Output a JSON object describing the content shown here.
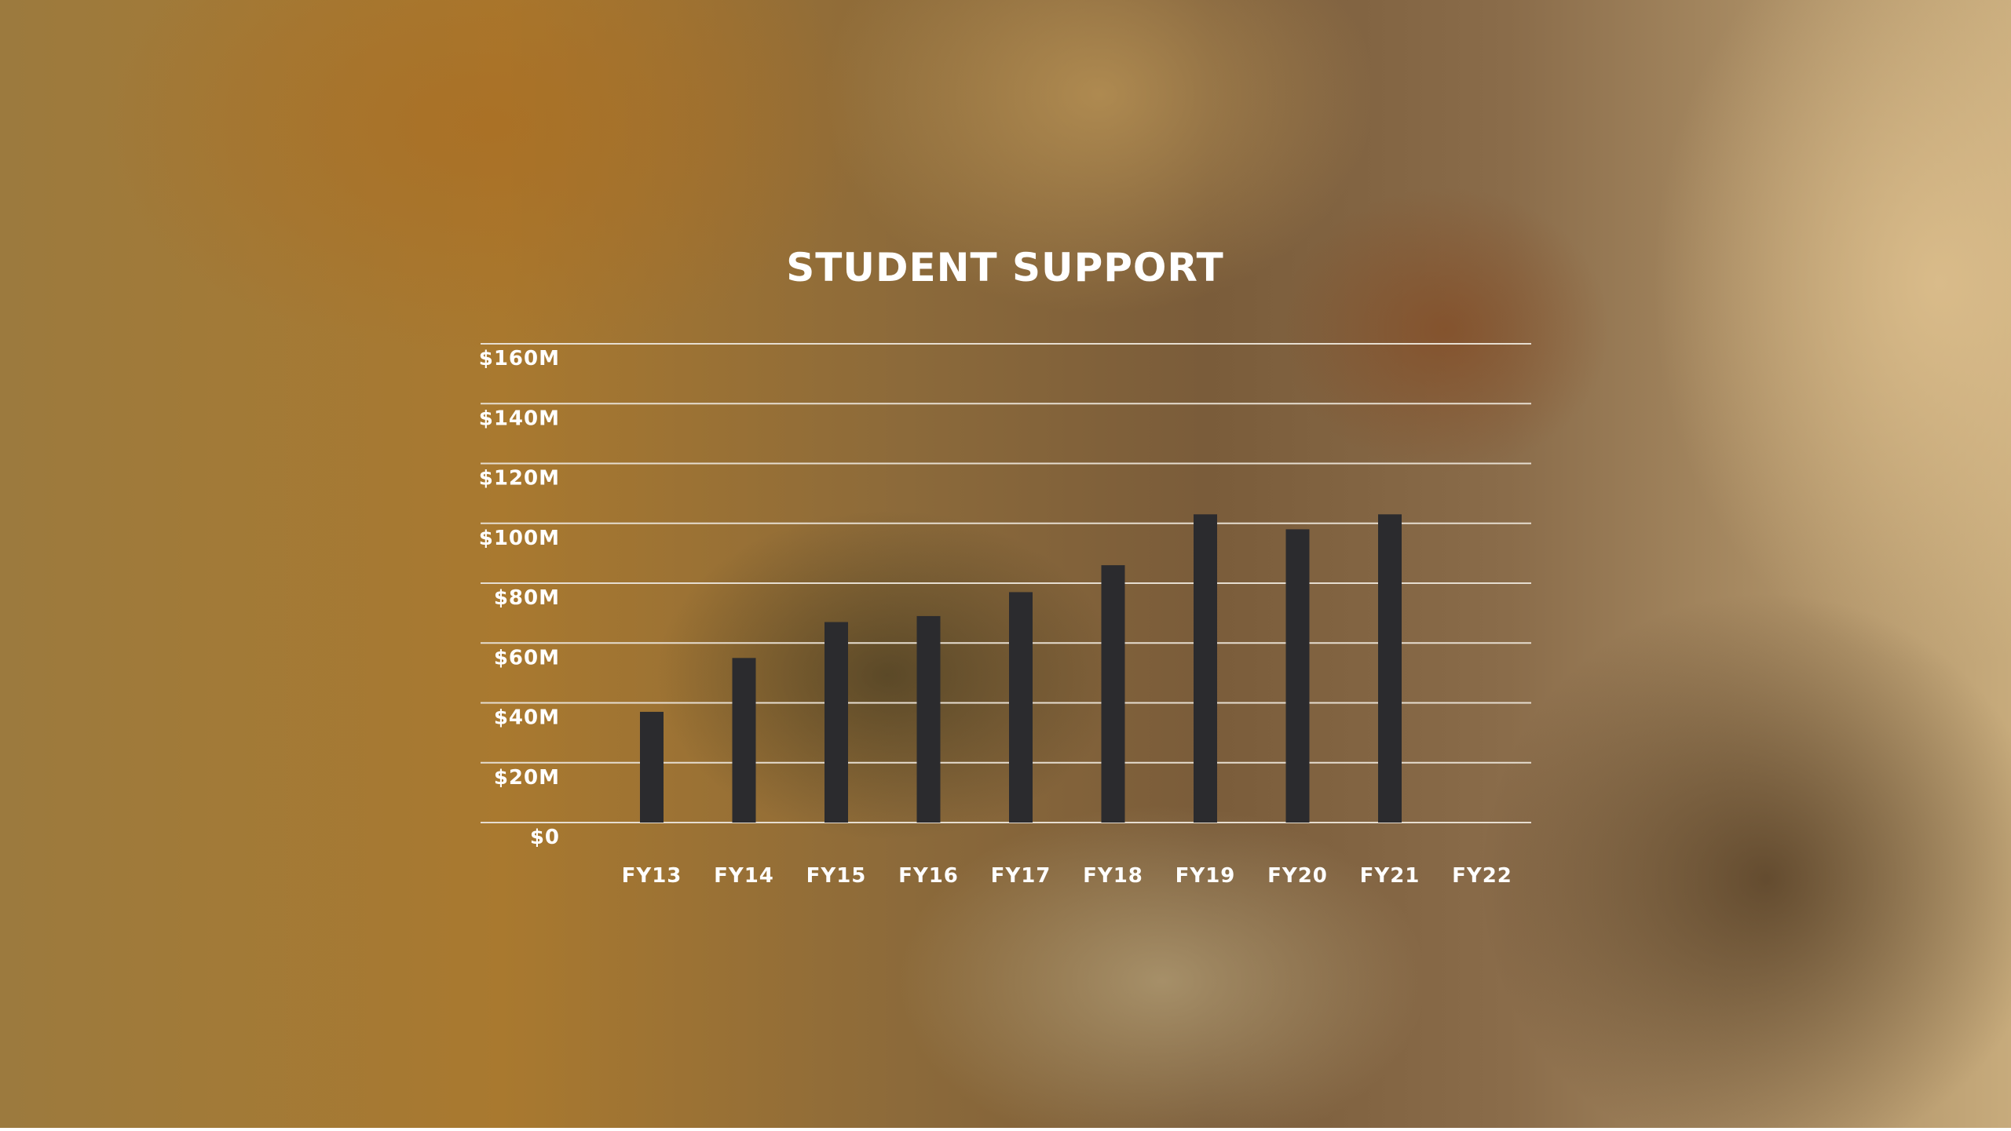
{
  "chart_data": {
    "type": "bar",
    "title": "STUDENT SUPPORT",
    "xlabel": "",
    "ylabel": "",
    "categories": [
      "FY13",
      "FY14",
      "FY15",
      "FY16",
      "FY17",
      "FY18",
      "FY19",
      "FY20",
      "FY21",
      "FY22"
    ],
    "values": [
      37,
      55,
      67,
      69,
      77,
      86,
      103,
      98,
      103,
      null
    ],
    "ylim": [
      0,
      160
    ],
    "yticks": [
      0,
      20,
      40,
      60,
      80,
      100,
      120,
      140,
      160
    ],
    "ytick_labels": [
      "$0",
      "$20M",
      "$40M",
      "$60M",
      "$80M",
      "$100M",
      "$120M",
      "$140M",
      "$160M"
    ],
    "grid": true,
    "legend": "none",
    "colors": {
      "bar": "#2b2b2e",
      "grid": "#e6ddd0",
      "text": "#ffffff"
    }
  }
}
